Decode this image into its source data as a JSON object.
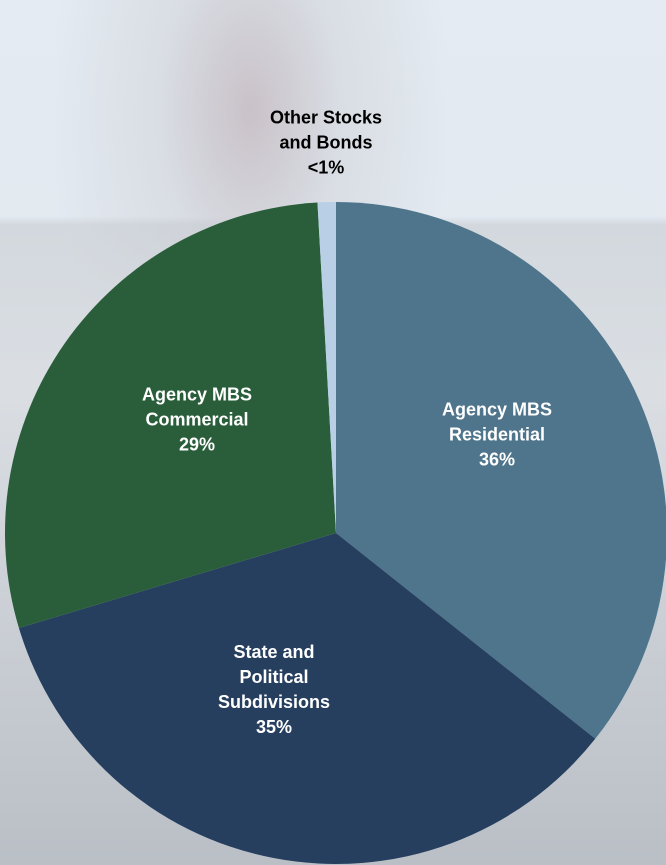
{
  "chart_data": {
    "type": "pie",
    "categories": [
      "Agency MBS Residential",
      "State and Political Subdivisions",
      "Agency MBS Commercial",
      "Other Stocks and Bonds"
    ],
    "values": [
      36,
      35,
      29,
      0.9
    ],
    "value_labels": [
      "36%",
      "35%",
      "29%",
      "<1%"
    ],
    "colors": [
      "#4e758c",
      "#263f5f",
      "#2a5e3b",
      "#b8cfe6"
    ]
  }
}
